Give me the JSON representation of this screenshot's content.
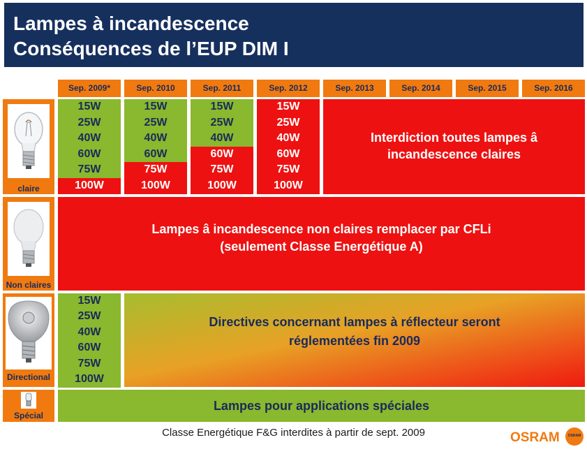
{
  "title": {
    "line1": "Lampes à incandescence",
    "line2": "Conséquences de l’EUP DIM I"
  },
  "headers": [
    "Sep. 2009*",
    "Sep. 2010",
    "Sep. 2011",
    "Sep. 2012",
    "Sep. 2013",
    "Sep. 2014",
    "Sep. 2015",
    "Sep. 2016"
  ],
  "rows": {
    "claire": {
      "label": "claire",
      "columns": [
        [
          {
            "w": "15W",
            "s": "ok"
          },
          {
            "w": "25W",
            "s": "ok"
          },
          {
            "w": "40W",
            "s": "ok"
          },
          {
            "w": "60W",
            "s": "ok"
          },
          {
            "w": "75W",
            "s": "ok"
          },
          {
            "w": "100W",
            "s": "banned"
          }
        ],
        [
          {
            "w": "15W",
            "s": "ok"
          },
          {
            "w": "25W",
            "s": "ok"
          },
          {
            "w": "40W",
            "s": "ok"
          },
          {
            "w": "60W",
            "s": "ok"
          },
          {
            "w": "75W",
            "s": "banned"
          },
          {
            "w": "100W",
            "s": "banned"
          }
        ],
        [
          {
            "w": "15W",
            "s": "ok"
          },
          {
            "w": "25W",
            "s": "ok"
          },
          {
            "w": "40W",
            "s": "ok"
          },
          {
            "w": "60W",
            "s": "banned"
          },
          {
            "w": "75W",
            "s": "banned"
          },
          {
            "w": "100W",
            "s": "banned"
          }
        ],
        [
          {
            "w": "15W",
            "s": "banned"
          },
          {
            "w": "25W",
            "s": "banned"
          },
          {
            "w": "40W",
            "s": "banned"
          },
          {
            "w": "60W",
            "s": "banned"
          },
          {
            "w": "75W",
            "s": "banned"
          },
          {
            "w": "100W",
            "s": "banned"
          }
        ]
      ],
      "message_line1": "Interdiction toutes lampes â",
      "message_line2": "incandescence claires"
    },
    "non_claires": {
      "label": "Non claires",
      "message_line1": "Lampes â incandescence non claires remplacer par CFLi",
      "message_line2": "(seulement Classe Energétique A)"
    },
    "directional": {
      "label": "Directional",
      "watts": [
        "15W",
        "25W",
        "40W",
        "60W",
        "75W",
        "100W"
      ],
      "message_line1": "Directives concernant lampes à réflecteur seront",
      "message_line2": "réglementées fin 2009"
    },
    "special": {
      "label": "Spécial",
      "message": "Lampes pour applications spéciales"
    }
  },
  "footer": "Classe Energétique F&G interdites à partir de sept. 2009",
  "logo": {
    "text": "OSRAM",
    "badge": "OSRAM"
  },
  "colors": {
    "title_bg": "#16305e",
    "header_orange": "#f07a10",
    "green": "#8ab82e",
    "red": "#ee1111"
  }
}
